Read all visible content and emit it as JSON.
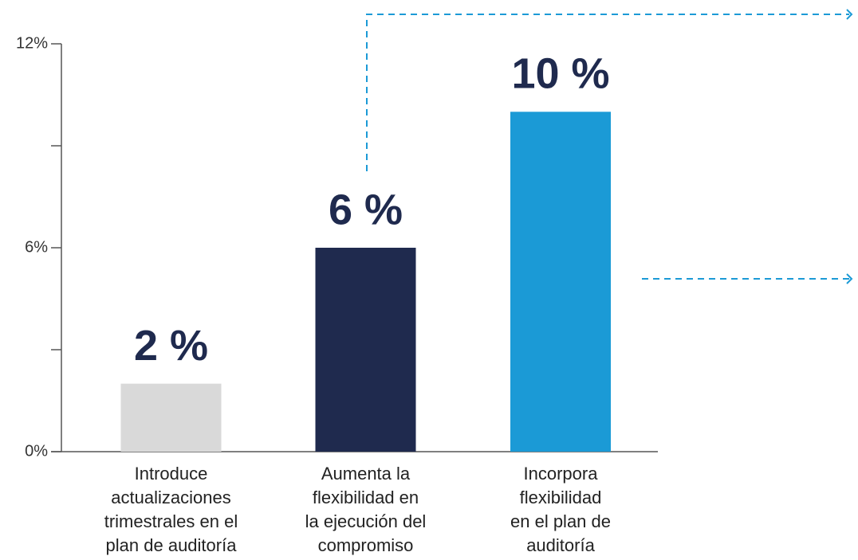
{
  "chart_data": {
    "type": "bar",
    "categories": [
      "Introduce\nactualizaciones\ntrimestrales en el\nplan de auditoría",
      "Aumenta la\nflexibilidad en\nla ejecución del\ncompromiso",
      "Incorpora\nflexibilidad\nen el plan de\nauditoría"
    ],
    "values": [
      2,
      6,
      10
    ],
    "value_labels": [
      "2 %",
      "6 %",
      "10 %"
    ],
    "colors": [
      "#d9d9d9",
      "#1f2a4e",
      "#1b9ad6"
    ],
    "label_color": "#1f2a4e",
    "ylim": [
      0,
      12
    ],
    "yticks": [
      {
        "value": 0,
        "label": "0%"
      },
      {
        "value": 6,
        "label": "6%"
      },
      {
        "value": 12,
        "label": "12%"
      }
    ],
    "minor_yticks": [
      3,
      9
    ],
    "grid": false
  }
}
